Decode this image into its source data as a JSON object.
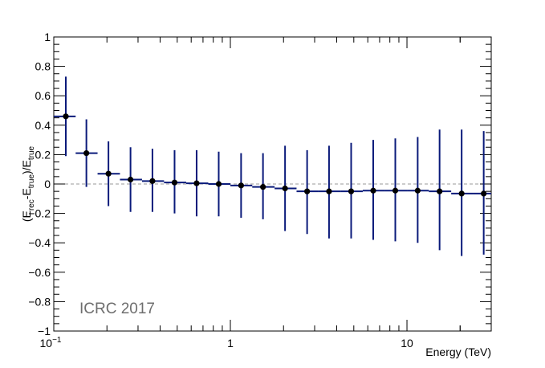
{
  "chart_data": {
    "type": "scatter",
    "xlabel": "Energy (TeV)",
    "ylabel": {
      "base": "(E",
      "sub1": "rec",
      "mid": "-E",
      "sub2": "true",
      "mid2": ")/E",
      "sub3": "true"
    },
    "xscale": "log",
    "xlim": [
      0.1,
      30
    ],
    "ylim": [
      -1,
      1
    ],
    "x_ticks": [
      {
        "value": 0.1,
        "label": "10",
        "exponent": "−1"
      },
      {
        "value": 1,
        "label": "1"
      },
      {
        "value": 10,
        "label": "10"
      }
    ],
    "y_ticks": [
      {
        "value": -1,
        "label": "−1"
      },
      {
        "value": -0.8,
        "label": "−0.8"
      },
      {
        "value": -0.6,
        "label": "−0.6"
      },
      {
        "value": -0.4,
        "label": "−0.4"
      },
      {
        "value": -0.2,
        "label": "−0.2"
      },
      {
        "value": 0,
        "label": "0"
      },
      {
        "value": 0.2,
        "label": "0.2"
      },
      {
        "value": 0.4,
        "label": "0.4"
      },
      {
        "value": 0.6,
        "label": "0.6"
      },
      {
        "value": 0.8,
        "label": "0.8"
      },
      {
        "value": 1,
        "label": "1"
      }
    ],
    "reference_line": {
      "y": 0,
      "style": "dashed",
      "color": "#9a9a9a"
    },
    "annotation": "ICRC 2017",
    "colors": {
      "points": "#000000",
      "error_bars": "#0a1a7a",
      "watermark": "#6e6e6e"
    },
    "grid": false,
    "points": [
      {
        "x": 0.117,
        "xlo": 0.1,
        "xhi": 0.133,
        "y": 0.46,
        "ylo": 0.19,
        "yhi": 0.73
      },
      {
        "x": 0.153,
        "xlo": 0.133,
        "xhi": 0.177,
        "y": 0.21,
        "ylo": -0.02,
        "yhi": 0.44
      },
      {
        "x": 0.204,
        "xlo": 0.177,
        "xhi": 0.237,
        "y": 0.07,
        "ylo": -0.15,
        "yhi": 0.29
      },
      {
        "x": 0.272,
        "xlo": 0.237,
        "xhi": 0.316,
        "y": 0.03,
        "ylo": -0.19,
        "yhi": 0.25
      },
      {
        "x": 0.362,
        "xlo": 0.316,
        "xhi": 0.421,
        "y": 0.02,
        "ylo": -0.19,
        "yhi": 0.24
      },
      {
        "x": 0.483,
        "xlo": 0.421,
        "xhi": 0.562,
        "y": 0.01,
        "ylo": -0.2,
        "yhi": 0.23
      },
      {
        "x": 0.644,
        "xlo": 0.562,
        "xhi": 0.75,
        "y": 0.005,
        "ylo": -0.22,
        "yhi": 0.23
      },
      {
        "x": 0.859,
        "xlo": 0.75,
        "xhi": 1.0,
        "y": 0.0,
        "ylo": -0.22,
        "yhi": 0.22
      },
      {
        "x": 1.15,
        "xlo": 1.0,
        "xhi": 1.33,
        "y": -0.01,
        "ylo": -0.23,
        "yhi": 0.21
      },
      {
        "x": 1.53,
        "xlo": 1.33,
        "xhi": 1.78,
        "y": -0.02,
        "ylo": -0.24,
        "yhi": 0.21
      },
      {
        "x": 2.04,
        "xlo": 1.78,
        "xhi": 2.37,
        "y": -0.03,
        "ylo": -0.32,
        "yhi": 0.26
      },
      {
        "x": 2.72,
        "xlo": 2.37,
        "xhi": 3.16,
        "y": -0.05,
        "ylo": -0.34,
        "yhi": 0.23
      },
      {
        "x": 3.62,
        "xlo": 3.16,
        "xhi": 4.22,
        "y": -0.05,
        "ylo": -0.37,
        "yhi": 0.26
      },
      {
        "x": 4.83,
        "xlo": 4.22,
        "xhi": 5.62,
        "y": -0.05,
        "ylo": -0.37,
        "yhi": 0.28
      },
      {
        "x": 6.44,
        "xlo": 5.62,
        "xhi": 7.5,
        "y": -0.045,
        "ylo": -0.38,
        "yhi": 0.3
      },
      {
        "x": 8.59,
        "xlo": 7.5,
        "xhi": 10.0,
        "y": -0.045,
        "ylo": -0.39,
        "yhi": 0.31
      },
      {
        "x": 11.5,
        "xlo": 10.0,
        "xhi": 13.3,
        "y": -0.045,
        "ylo": -0.4,
        "yhi": 0.32
      },
      {
        "x": 15.3,
        "xlo": 13.3,
        "xhi": 17.8,
        "y": -0.05,
        "ylo": -0.45,
        "yhi": 0.37
      },
      {
        "x": 20.4,
        "xlo": 17.8,
        "xhi": 23.7,
        "y": -0.065,
        "ylo": -0.49,
        "yhi": 0.37
      },
      {
        "x": 27.2,
        "xlo": 23.7,
        "xhi": 30.0,
        "y": -0.065,
        "ylo": -0.48,
        "yhi": 0.36
      }
    ]
  }
}
